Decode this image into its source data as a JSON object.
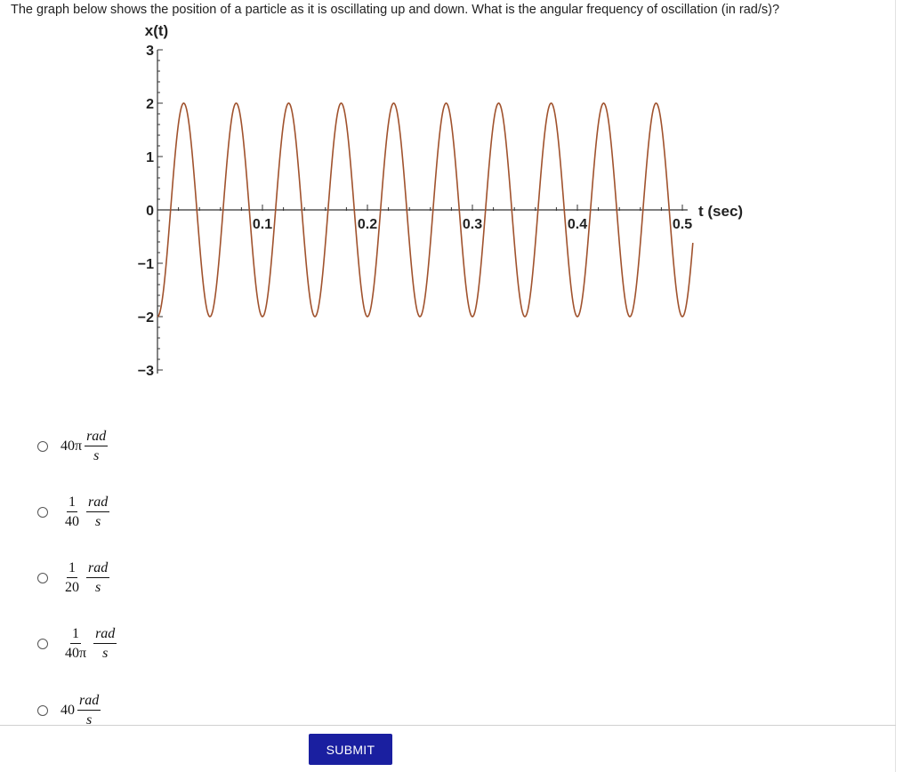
{
  "question": {
    "text": "The graph below shows the position of a particle as it is oscillating up and down. What is the angular frequency of oscillation (in rad/s)?"
  },
  "chart_data": {
    "type": "line",
    "xlabel": "t (sec)",
    "ylabel": "x(t)",
    "xlim": [
      0,
      0.51
    ],
    "ylim": [
      -3,
      3
    ],
    "x_ticks": [
      0.1,
      0.2,
      0.3,
      0.4,
      0.5
    ],
    "x_tick_labels": [
      "0.1",
      "0.2",
      "0.3",
      "0.4",
      "0.5"
    ],
    "y_ticks": [
      3,
      2,
      1,
      0,
      -1,
      -2,
      -3
    ],
    "y_tick_labels": [
      "3",
      "2",
      "1",
      "0",
      "−1",
      "−2",
      "−3"
    ],
    "series": [
      {
        "function": "x(t) = -2 cos(40π t)",
        "amplitude": 2,
        "frequency_hz": 20,
        "phase": "starts at minimum",
        "color": "#a0522d"
      }
    ],
    "grid": false
  },
  "options": [
    {
      "pre": "40π",
      "num": "rad",
      "den": "s"
    },
    {
      "n1": "1",
      "d1": "40",
      "num": "rad",
      "den": "s"
    },
    {
      "n1": "1",
      "d1": "20",
      "num": "rad",
      "den": "s"
    },
    {
      "n1": "1",
      "d1": "40π",
      "num": "rad",
      "den": "s"
    },
    {
      "pre": "40",
      "num": "rad",
      "den": "s"
    }
  ],
  "submit": {
    "label": "SUBMIT"
  },
  "colors": {
    "curve": "#a0522d",
    "submit_bg": "#1a1fa0",
    "axis": "#333333"
  }
}
